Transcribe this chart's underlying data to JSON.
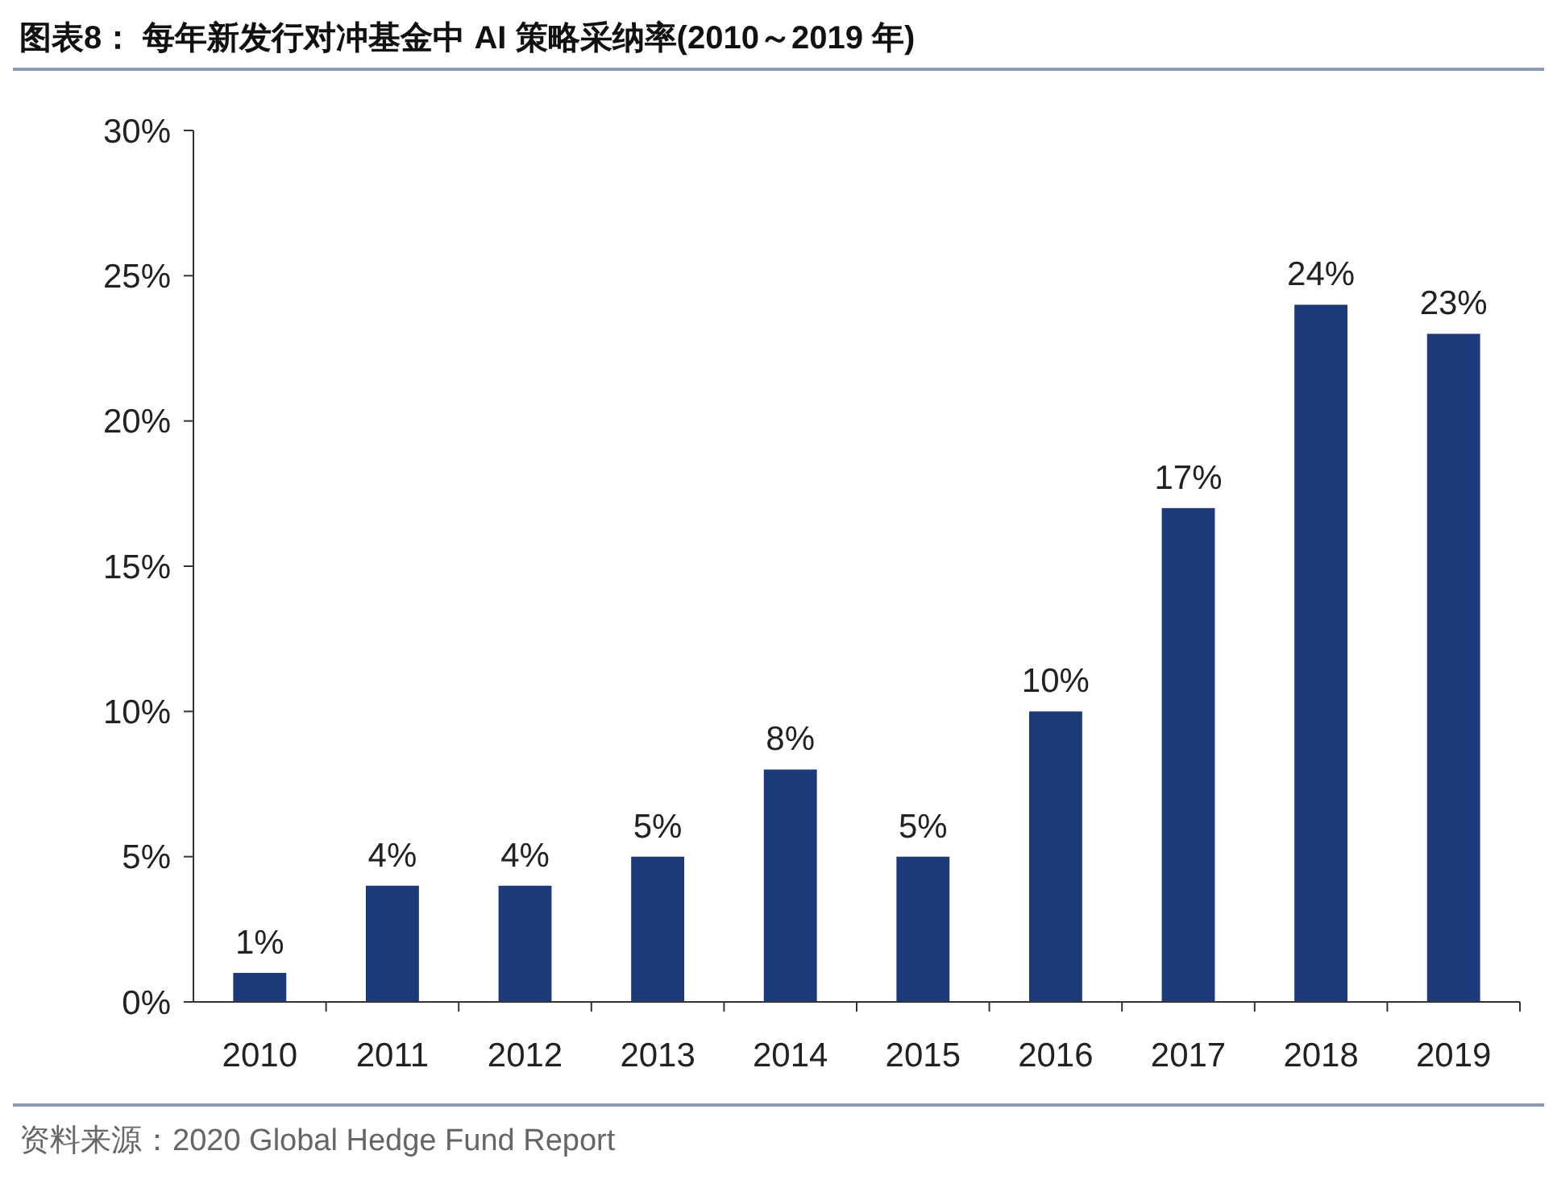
{
  "chart_data": {
    "type": "bar",
    "title": "图表8：  每年新发行对冲基金中 AI 策略采纳率(2010～2019 年)",
    "categories": [
      "2010",
      "2011",
      "2012",
      "2013",
      "2014",
      "2015",
      "2016",
      "2017",
      "2018",
      "2019"
    ],
    "values": [
      1,
      4,
      4,
      5,
      8,
      5,
      10,
      17,
      24,
      23
    ],
    "value_labels": [
      "1%",
      "4%",
      "4%",
      "5%",
      "8%",
      "5%",
      "10%",
      "17%",
      "24%",
      "23%"
    ],
    "color": "#1c3a7a",
    "ylim": [
      0,
      30
    ],
    "yticks": [
      {
        "value": 0,
        "label": "0%"
      },
      {
        "value": 5,
        "label": "5%"
      },
      {
        "value": 10,
        "label": "10%"
      },
      {
        "value": 15,
        "label": "15%"
      },
      {
        "value": 20,
        "label": "20%"
      },
      {
        "value": 25,
        "label": "25%"
      },
      {
        "value": 30,
        "label": "30%"
      }
    ],
    "grid": false,
    "annotations": [
      "资料来源：2020 Global Hedge Fund Report"
    ]
  }
}
